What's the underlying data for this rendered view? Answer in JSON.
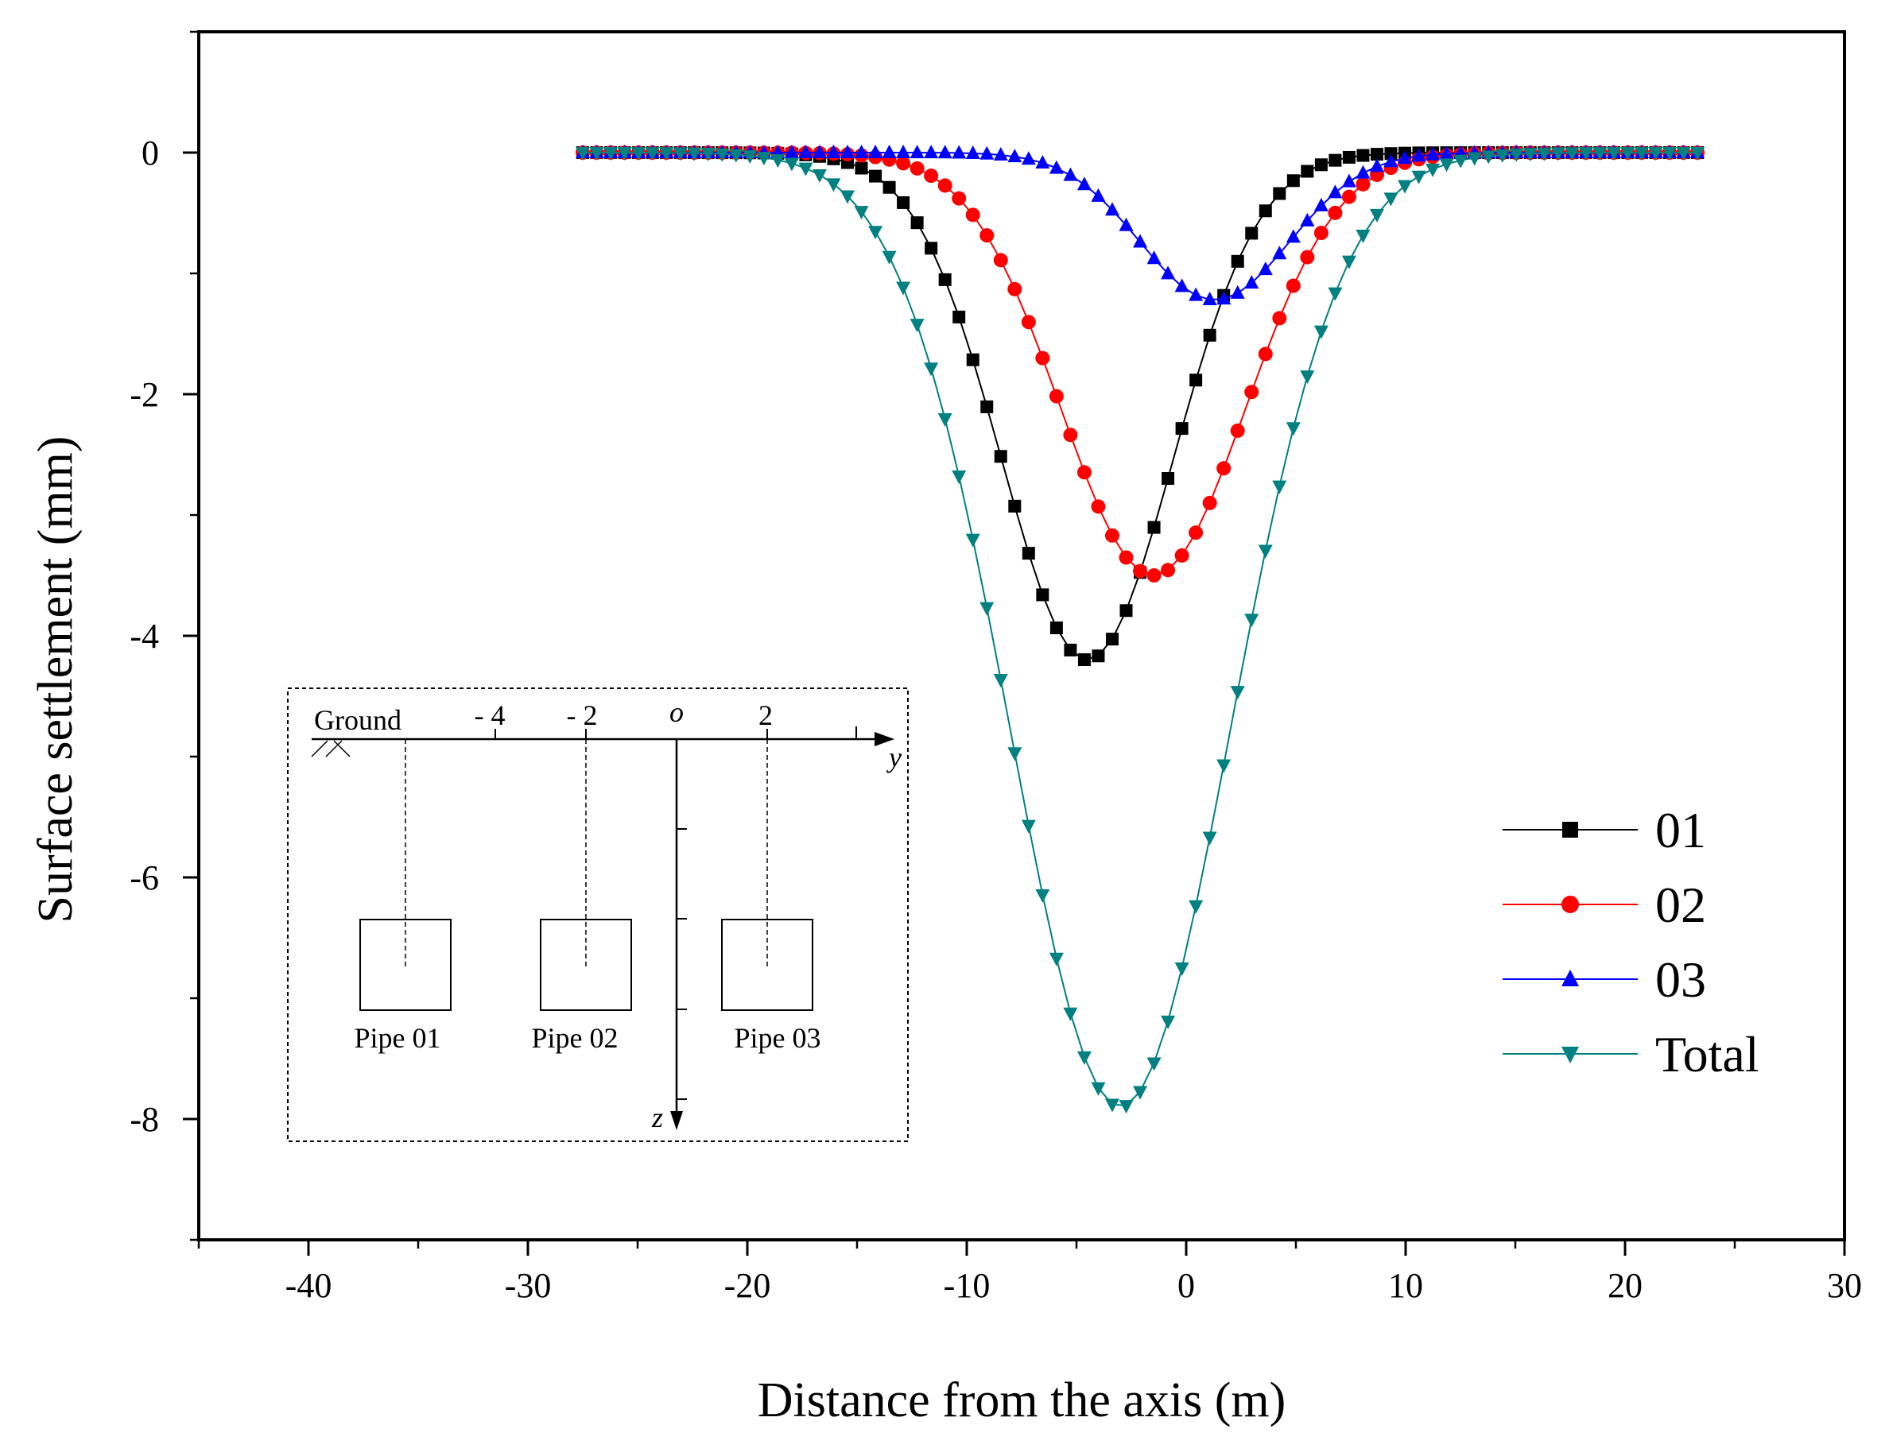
{
  "chart_data": {
    "type": "line",
    "xlabel": "Distance from the axis (m)",
    "ylabel": "Surface settlement (mm)",
    "xlim": [
      -45,
      30
    ],
    "ylim": [
      -9,
      1
    ],
    "xticks": [
      -40,
      -30,
      -20,
      -10,
      0,
      10,
      20,
      30
    ],
    "yticks": [
      0,
      -2,
      -4,
      -6,
      -8
    ],
    "xtick_labels": [
      "-40",
      "-30",
      "-20",
      "-10",
      "0",
      "10",
      "20",
      "30"
    ],
    "ytick_labels": [
      "0",
      "-2",
      "-4",
      "-6",
      "-8"
    ],
    "x_start": -27.5,
    "x_end": 23.3,
    "x_step": 0.635,
    "legend_position": "bottom-right",
    "series": [
      {
        "name": "01",
        "color": "#000000",
        "marker": "square",
        "amplitude": -4.2,
        "center": -4.5,
        "width": 3.9
      },
      {
        "name": "02",
        "color": "#ff0000",
        "marker": "circle",
        "amplitude": -3.5,
        "center": -1.5,
        "width": 4.2
      },
      {
        "name": "03",
        "color": "#0000ff",
        "marker": "triangle-up",
        "amplitude": -1.22,
        "center": 1.3,
        "width": 3.4
      },
      {
        "name": "Total",
        "color": "#008080",
        "marker": "triangle-down",
        "amplitude": -7.9,
        "center": -3.0,
        "width": 5.0
      }
    ]
  },
  "inset": {
    "ground_label": "Ground",
    "origin_label": "o",
    "y_axis_label": "y",
    "z_axis_label": "z",
    "tick_labels": [
      "- 4",
      "- 2",
      "2"
    ],
    "pipe_labels": [
      "Pipe 01",
      "Pipe 02",
      "Pipe 03"
    ]
  }
}
